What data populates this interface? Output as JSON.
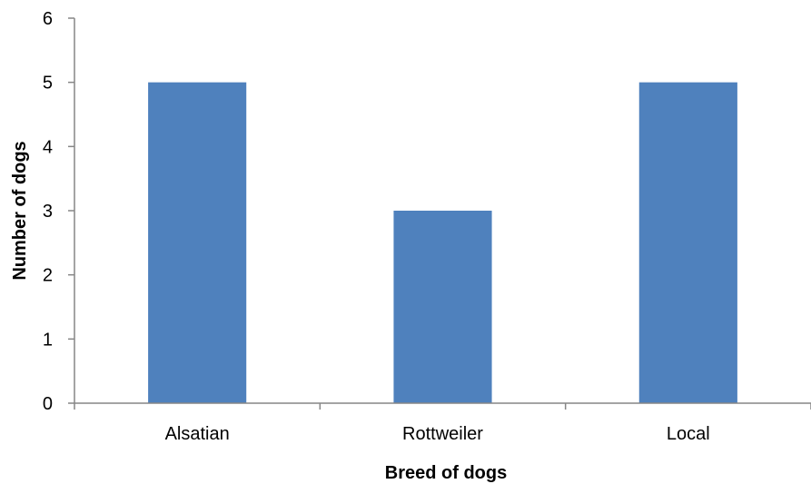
{
  "chart_data": {
    "type": "bar",
    "categories": [
      "Alsatian",
      "Rottweiler",
      "Local"
    ],
    "values": [
      5,
      3,
      5
    ],
    "title": "",
    "xlabel": "Breed of dogs",
    "ylabel": "Number of dogs",
    "ylim": [
      0,
      6
    ],
    "yticks": [
      "0",
      "1",
      "2",
      "3",
      "4",
      "5",
      "6"
    ],
    "grid": false,
    "legend": "none",
    "bar_color": "#4f81bd"
  }
}
